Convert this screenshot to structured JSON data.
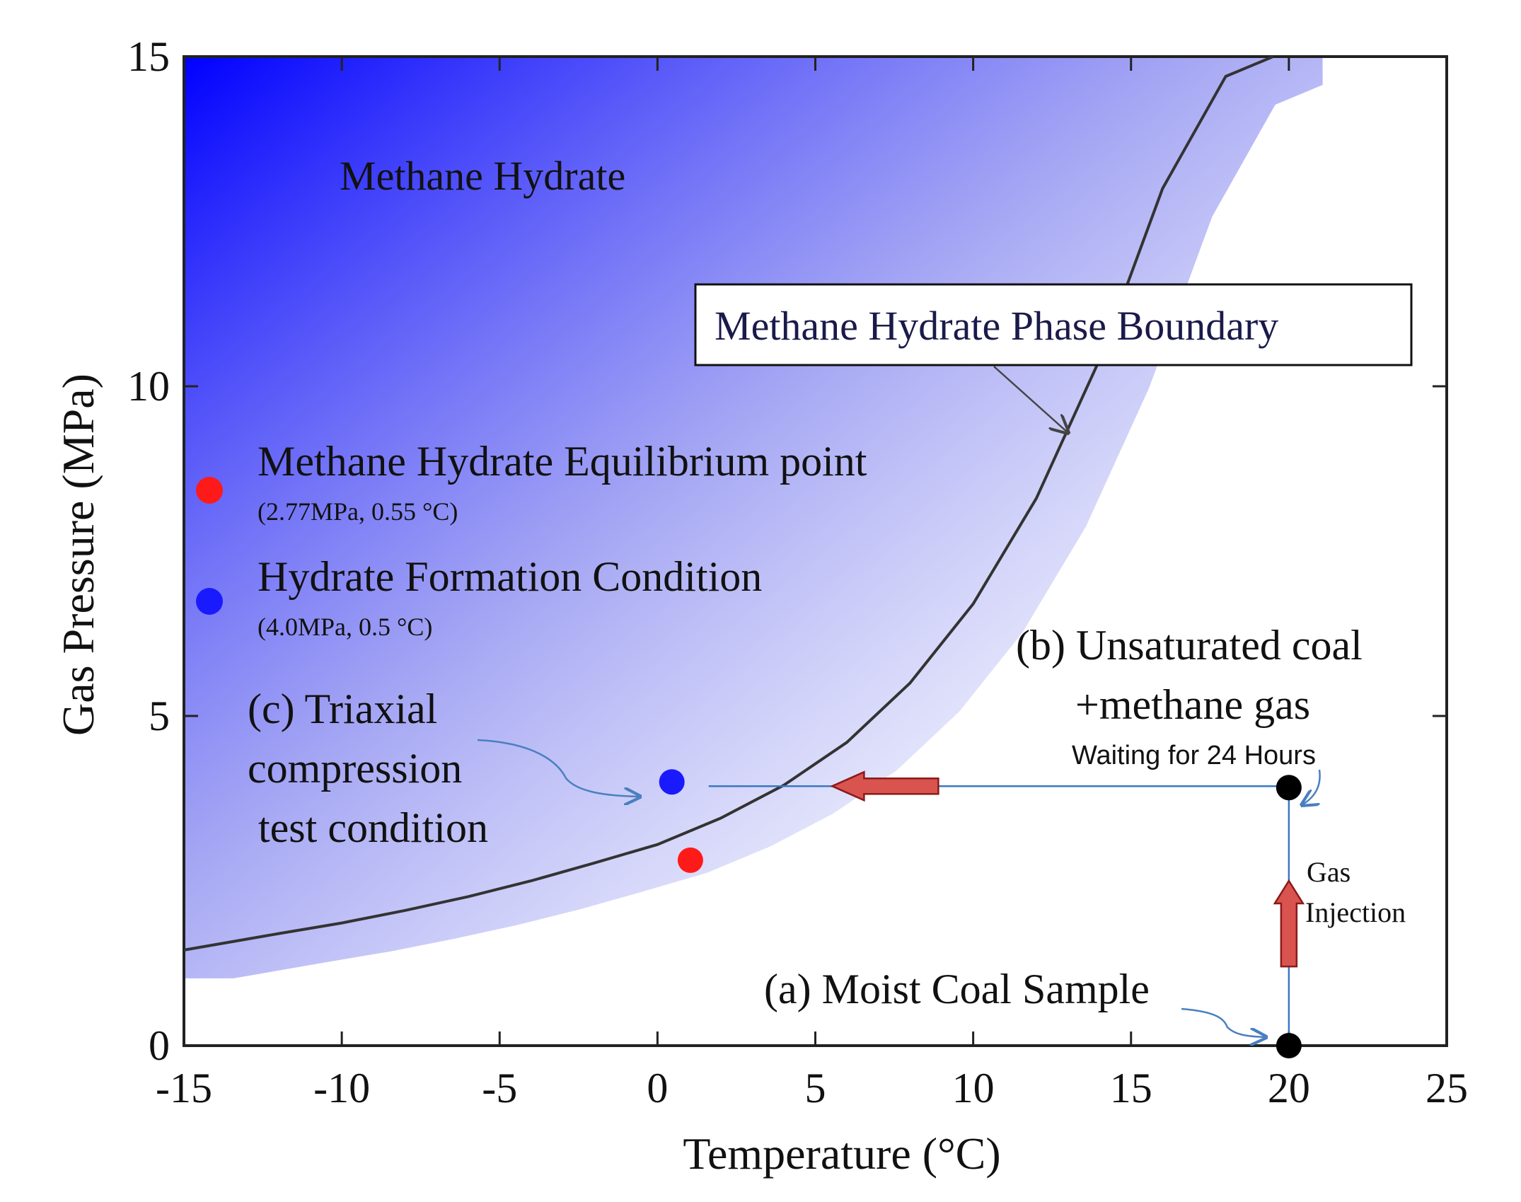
{
  "chart_data": {
    "type": "line",
    "title": "",
    "xlabel": "Temperature (°C)",
    "ylabel": "Gas Pressure (MPa)",
    "xlim": [
      -15,
      25
    ],
    "ylim": [
      0,
      15
    ],
    "x_ticks": [
      -15,
      -10,
      -5,
      0,
      5,
      10,
      15,
      20,
      25
    ],
    "y_ticks": [
      0,
      5,
      10,
      15
    ],
    "x_tick_labels": [
      "-15",
      "-10",
      "-5",
      "0",
      "5",
      "10",
      "15",
      "20",
      "25"
    ],
    "y_tick_labels": [
      "0",
      "5",
      "10",
      "15"
    ],
    "grid": false,
    "series": [
      {
        "name": "Methane Hydrate Phase Boundary",
        "x": [
          -15,
          -12,
          -10,
          -8,
          -6,
          -4,
          -2,
          0,
          2,
          4,
          6,
          8,
          10,
          12,
          14,
          16,
          18,
          19.5
        ],
        "y": [
          1.45,
          1.7,
          1.86,
          2.05,
          2.26,
          2.5,
          2.77,
          3.05,
          3.45,
          3.95,
          4.6,
          5.5,
          6.7,
          8.3,
          10.4,
          13.0,
          14.7,
          15.0
        ]
      }
    ],
    "region_label": "Methane Hydrate",
    "boundary_box_label": "Methane Hydrate Phase Boundary",
    "points": [
      {
        "name": "Methane Hydrate Equilibrium point",
        "x": 0.55,
        "y": 2.77,
        "color": "#ff1a1a"
      },
      {
        "name": "Hydrate Formation Condition",
        "x": 0.5,
        "y": 4.0,
        "color": "#1a1aff"
      },
      {
        "name": "Unsaturated coal + methane gas",
        "x": 20,
        "y": 4.0,
        "color": "#000000"
      },
      {
        "name": "Moist Coal Sample",
        "x": 20,
        "y": 0,
        "color": "#000000"
      }
    ],
    "legend": [
      {
        "label": "Methane Hydrate Equilibrium point",
        "sub": "(2.77MPa, 0.55 °C)",
        "color": "#ff1a1a"
      },
      {
        "label": "Hydrate Formation Condition",
        "sub": "(4.0MPa, 0.5 °C)",
        "color": "#1a1aff"
      }
    ],
    "annotations": {
      "triaxial": [
        "(c) Triaxial",
        "compression",
        "test condition"
      ],
      "unsaturated": [
        "(b) Unsaturated coal",
        "+methane gas"
      ],
      "waiting": "Waiting  for 24 Hours",
      "gas_injection": [
        "Gas",
        "Injection"
      ],
      "moist": "(a) Moist Coal Sample"
    },
    "colors": {
      "hydrate_region": "#0000ff",
      "boundary": "#333333",
      "path_line": "#3a78c2",
      "arrow_fill": "#d9534f",
      "arrow_stroke": "#8b1a1a"
    }
  }
}
